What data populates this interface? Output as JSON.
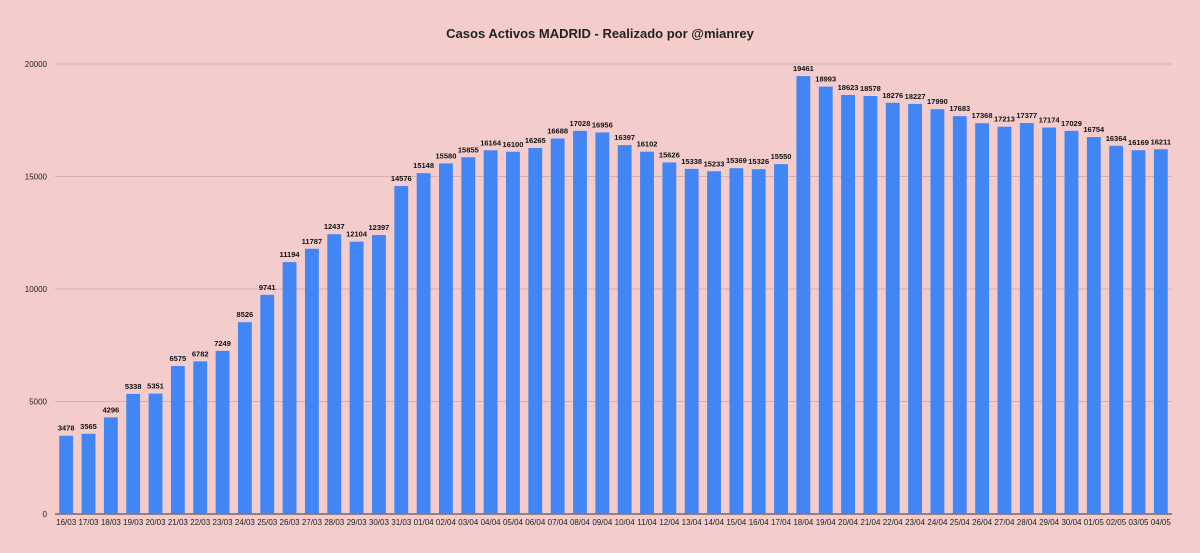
{
  "chart_data": {
    "type": "bar",
    "title": "Casos Activos MADRID - Realizado por @mianrey",
    "xlabel": "",
    "ylabel": "",
    "ylim": [
      0,
      20000
    ],
    "yticks": [
      0,
      5000,
      10000,
      15000,
      20000
    ],
    "grid": true,
    "legend": "none",
    "bar_color": "#4285f4",
    "background_color": "#f4cccc",
    "gridline_color": "#c8a6a6",
    "categories": [
      "16/03",
      "17/03",
      "18/03",
      "19/03",
      "20/03",
      "21/03",
      "22/03",
      "23/03",
      "24/03",
      "25/03",
      "26/03",
      "27/03",
      "28/03",
      "29/03",
      "30/03",
      "31/03",
      "01/04",
      "02/04",
      "03/04",
      "04/04",
      "05/04",
      "06/04",
      "07/04",
      "08/04",
      "09/04",
      "10/04",
      "11/04",
      "12/04",
      "13/04",
      "14/04",
      "15/04",
      "16/04",
      "17/04",
      "18/04",
      "19/04",
      "20/04",
      "21/04",
      "22/04",
      "23/04",
      "24/04",
      "25/04",
      "26/04",
      "27/04",
      "28/04",
      "29/04",
      "30/04",
      "01/05",
      "02/05",
      "03/05",
      "04/05"
    ],
    "values": [
      3478,
      3565,
      4296,
      5338,
      5351,
      6575,
      6782,
      7249,
      8526,
      9741,
      11194,
      11787,
      12437,
      12104,
      12397,
      14576,
      15148,
      15580,
      15855,
      16164,
      16100,
      16265,
      16688,
      17028,
      16956,
      16397,
      16102,
      15626,
      15338,
      15233,
      15369,
      15326,
      15550,
      19461,
      18993,
      18623,
      18578,
      18276,
      18227,
      17990,
      17683,
      17368,
      17213,
      17377,
      17174,
      17029,
      16754,
      16364,
      16169,
      16211
    ]
  }
}
